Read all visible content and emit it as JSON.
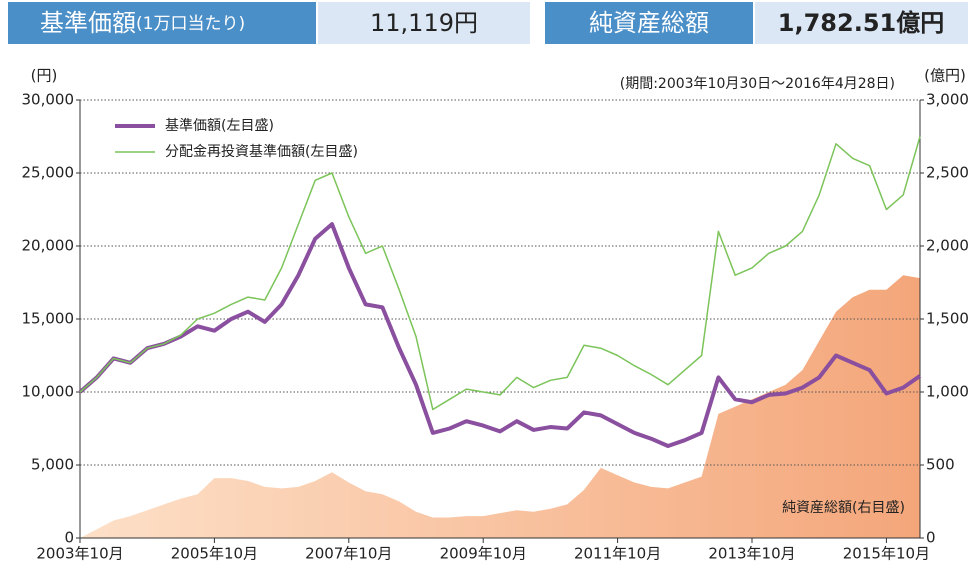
{
  "header": {
    "nav_label": "基準価額",
    "nav_note": "(1万口当たり)",
    "nav_value": "11,119円",
    "assets_label": "純資産総額",
    "assets_value": "1,782.51億円"
  },
  "chart_data": {
    "type": "line",
    "annotation": "(期間:2003年10月30日～2016年4月28日)",
    "y_unit": "(円)",
    "y2_unit": "(億円)",
    "x": [
      "2003-10",
      "2004-01",
      "2004-04",
      "2004-07",
      "2004-10",
      "2005-01",
      "2005-04",
      "2005-07",
      "2005-10",
      "2006-01",
      "2006-04",
      "2006-07",
      "2006-10",
      "2007-01",
      "2007-04",
      "2007-07",
      "2007-10",
      "2008-01",
      "2008-04",
      "2008-07",
      "2008-10",
      "2009-01",
      "2009-04",
      "2009-07",
      "2009-10",
      "2010-01",
      "2010-04",
      "2010-07",
      "2010-10",
      "2011-01",
      "2011-04",
      "2011-07",
      "2011-10",
      "2012-01",
      "2012-04",
      "2012-07",
      "2012-10",
      "2013-01",
      "2013-04",
      "2013-07",
      "2013-10",
      "2014-01",
      "2014-04",
      "2014-07",
      "2014-10",
      "2015-01",
      "2015-04",
      "2015-07",
      "2015-10",
      "2016-01",
      "2016-04"
    ],
    "series": [
      {
        "name": "基準価額(左目盛)",
        "color": "#8a4f9e",
        "width": 4,
        "values": [
          10000,
          11000,
          12300,
          12000,
          13000,
          13300,
          13800,
          14500,
          14200,
          15000,
          15500,
          14800,
          16000,
          18000,
          20500,
          21500,
          18500,
          16000,
          15800,
          13000,
          10500,
          7200,
          7500,
          8000,
          7700,
          7300,
          8000,
          7400,
          7600,
          7500,
          8600,
          8400,
          7800,
          7200,
          6800,
          6300,
          6700,
          7200,
          11000,
          9500,
          9300,
          9800,
          9900,
          10300,
          11000,
          12500,
          12000,
          11500,
          9900,
          10300,
          11100
        ]
      },
      {
        "name": "分配金再投資基準価額(左目盛)",
        "color": "#7cc45a",
        "width": 1.5,
        "values": [
          10000,
          11000,
          12300,
          12000,
          13000,
          13300,
          13900,
          15000,
          15400,
          16000,
          16500,
          16300,
          18500,
          21500,
          24500,
          25000,
          22000,
          19500,
          20000,
          17000,
          13800,
          8800,
          9500,
          10200,
          10000,
          9800,
          11000,
          10300,
          10800,
          11000,
          13200,
          13000,
          12500,
          11800,
          11200,
          10500,
          11500,
          12500,
          21000,
          18000,
          18500,
          19500,
          20000,
          21000,
          23500,
          27000,
          26000,
          25500,
          22500,
          23500,
          27500
        ]
      },
      {
        "name": "純資産総額(右目盛)",
        "color": "#f5a87c",
        "axis": "y2",
        "area": true,
        "values": [
          0,
          60,
          120,
          150,
          190,
          230,
          270,
          300,
          410,
          410,
          390,
          350,
          340,
          350,
          390,
          450,
          380,
          320,
          300,
          250,
          180,
          140,
          140,
          150,
          150,
          170,
          190,
          180,
          200,
          230,
          330,
          480,
          430,
          380,
          350,
          340,
          380,
          420,
          850,
          900,
          950,
          1000,
          1050,
          1150,
          1350,
          1550,
          1650,
          1700,
          1700,
          1800,
          1780
        ]
      }
    ],
    "xlim": [
      "2003-10",
      "2016-04"
    ],
    "xticks": [
      {
        "value": "2003-10",
        "label": "2003年10月"
      },
      {
        "value": "2005-10",
        "label": "2005年10月"
      },
      {
        "value": "2007-10",
        "label": "2007年10月"
      },
      {
        "value": "2009-10",
        "label": "2009年10月"
      },
      {
        "value": "2011-10",
        "label": "2011年10月"
      },
      {
        "value": "2013-10",
        "label": "2013年10月"
      },
      {
        "value": "2015-10",
        "label": "2015年10月"
      }
    ],
    "ylim": [
      0,
      30000
    ],
    "yticks": [
      0,
      {
        "value": 5000,
        "label": "5,000"
      },
      {
        "value": 10000,
        "label": "10,000"
      },
      {
        "value": 15000,
        "label": "15,000"
      },
      {
        "value": 20000,
        "label": "20,000"
      },
      {
        "value": 25000,
        "label": "25,000"
      },
      {
        "value": 30000,
        "label": "30,000"
      }
    ],
    "y2lim": [
      0,
      3000
    ],
    "y2ticks": [
      0,
      500,
      {
        "value": 1000,
        "label": "1,000"
      },
      {
        "value": 1500,
        "label": "1,500"
      },
      {
        "value": 2000,
        "label": "2,000"
      },
      {
        "value": 2500,
        "label": "2,500"
      },
      {
        "value": 3000,
        "label": "3,000"
      }
    ],
    "grid": true,
    "legend": "upper left"
  }
}
